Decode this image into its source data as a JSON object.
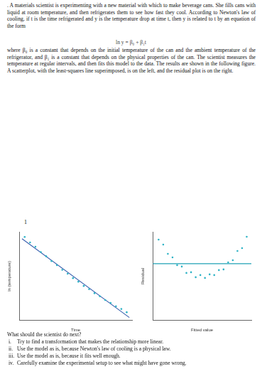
{
  "document": {
    "intro": ". A materials scientist is experimenting with a new material with which to make beverage cans. She fills cans with liquid at room temperature, and then refrigerates them to see how fast they cool. According to Newton's law of cooling, if t is the time refrigerated and y is the temperature drop at time t, then y is related to t by an equation of the form",
    "equation": "ln y = β₀ + β₁t",
    "explanation": "where β₀ is a constant that depends on the initial temperature of the can and the ambient temperature of the refrigerator, and β₁ is a constant that depends on the physical properties of the can. The scientist measures the temperature at regular intervals, and then fits this model to the data. The results are shown in the following figure. A scatterplot, with the least-squares line superimposed, is on the left, and the residual plot is on the right.",
    "margin_number": "1",
    "question": "What should the scientist do next?",
    "options": [
      {
        "label": "i.",
        "text": "Try to find a transformation that makes the relationship more linear."
      },
      {
        "label": "ii.",
        "text": "Use the model as is, because Newton's law of cooling is a physical law."
      },
      {
        "label": "iii.",
        "text": "Use the model as is, because it fits well enough."
      },
      {
        "label": "iv.",
        "text": "Carefully examine the experimental setup to see what might have gone wrong."
      }
    ]
  },
  "chart_data": [
    {
      "type": "scatter",
      "x_label": "Time",
      "y_label": "ln (temperature)",
      "xlim": [
        0,
        21
      ],
      "ylim": [
        1.5,
        10.5
      ],
      "tick_labels": false,
      "grid": false,
      "series": [
        {
          "type": "scatter",
          "color": "#2fb3c6",
          "marker": "circle",
          "x": [
            1,
            2,
            3,
            4,
            5,
            6,
            7,
            8,
            9,
            10,
            11,
            12,
            13,
            14,
            15,
            16,
            17,
            18,
            19,
            20
          ],
          "values": [
            9.98,
            9.42,
            8.98,
            8.45,
            8.02,
            7.52,
            7.11,
            6.64,
            6.25,
            5.8,
            5.44,
            5.01,
            4.68,
            4.27,
            3.96,
            3.58,
            3.29,
            2.94,
            2.67,
            2.34
          ]
        },
        {
          "type": "line",
          "color": "#3d63b0",
          "line_style": "solid",
          "x": [
            0.5,
            20.5
          ],
          "values": [
            9.8,
            1.8
          ]
        }
      ]
    },
    {
      "type": "scatter",
      "x_label": "Fitted value",
      "y_label": "Residual",
      "xlim": [
        1.5,
        10
      ],
      "ylim": [
        -0.8,
        0.45
      ],
      "tick_labels": false,
      "grid": false,
      "series": [
        {
          "type": "scatter",
          "color": "#2fb3c6",
          "marker": "circle",
          "x": [
            9.6,
            9.2,
            8.8,
            8.4,
            8.0,
            7.6,
            7.2,
            6.8,
            6.4,
            6.0,
            5.6,
            5.2,
            4.8,
            4.4,
            4.0,
            3.6,
            3.2,
            2.8,
            2.4,
            2.0
          ],
          "values": [
            0.38,
            0.22,
            0.18,
            0.05,
            0.02,
            -0.08,
            -0.09,
            -0.16,
            -0.15,
            -0.2,
            -0.16,
            -0.19,
            -0.12,
            -0.13,
            -0.04,
            -0.02,
            0.09,
            0.14,
            0.27,
            0.34
          ]
        },
        {
          "type": "line",
          "color": "#1fa2b5",
          "line_style": "solid",
          "x": [
            1.5,
            10
          ],
          "values": [
            0,
            0
          ]
        }
      ]
    }
  ]
}
